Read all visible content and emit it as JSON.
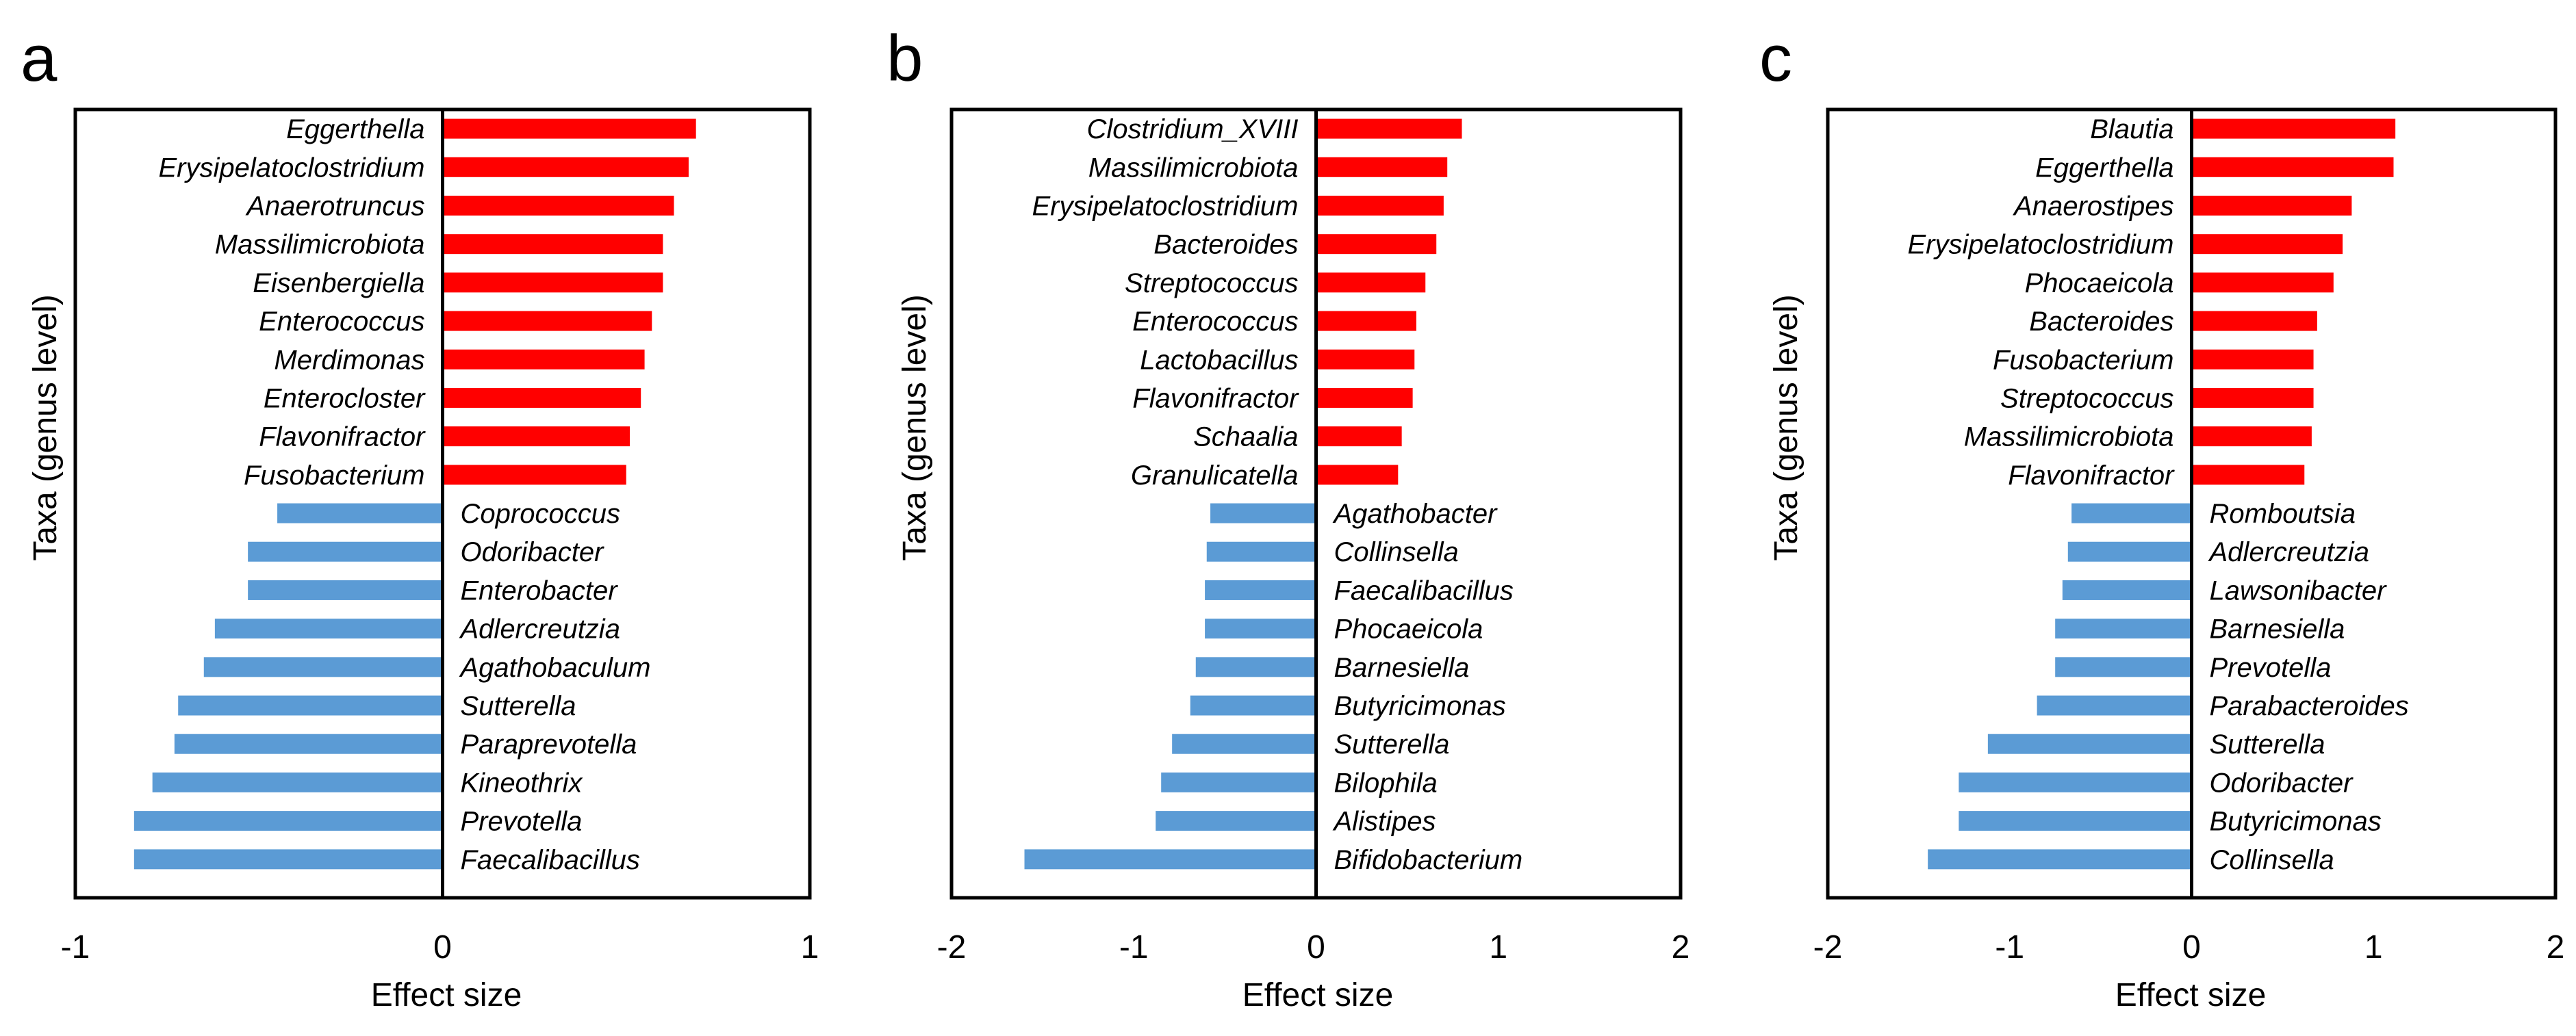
{
  "colors": {
    "positive": "#ff0000",
    "negative": "#5b9bd5",
    "axis": "#000000"
  },
  "chart_data": [
    {
      "panel": "a",
      "type": "bar",
      "orientation": "horizontal",
      "xlabel": "Effect size",
      "ylabel": "Taxa (genus level)",
      "xlim": [
        -1,
        1
      ],
      "xticks": [
        "-1",
        "0",
        "1"
      ],
      "categories": [
        "Eggerthella",
        "Erysipelatoclostridium",
        "Anaerotruncus",
        "Massilimicrobiota",
        "Eisenbergiella",
        "Enterococcus",
        "Merdimonas",
        "Enterocloster",
        "Flavonifractor",
        "Fusobacterium",
        "Coprococcus",
        "Odoribacter",
        "Enterobacter",
        "Adlercreutzia",
        "Agathobaculum",
        "Sutterella",
        "Paraprevotella",
        "Kineothrix",
        "Prevotella",
        "Faecalibacillus"
      ],
      "values": [
        0.69,
        0.67,
        0.63,
        0.6,
        0.6,
        0.57,
        0.55,
        0.54,
        0.51,
        0.5,
        -0.45,
        -0.53,
        -0.53,
        -0.62,
        -0.65,
        -0.72,
        -0.73,
        -0.79,
        -0.84,
        -0.84
      ]
    },
    {
      "panel": "b",
      "type": "bar",
      "orientation": "horizontal",
      "xlabel": "Effect size",
      "ylabel": "Taxa (genus level)",
      "xlim": [
        -2,
        2
      ],
      "xticks": [
        "-2",
        "-1",
        "0",
        "1",
        "2"
      ],
      "categories": [
        "Clostridium_XVIII",
        "Massilimicrobiota",
        "Erysipelatoclostridium",
        "Bacteroides",
        "Streptococcus",
        "Enterococcus",
        "Lactobacillus",
        "Flavonifractor",
        "Schaalia",
        "Granulicatella",
        "Agathobacter",
        "Collinsella",
        "Faecalibacillus",
        "Phocaeicola",
        "Barnesiella",
        "Butyricimonas",
        "Sutterella",
        "Bilophila",
        "Alistipes",
        "Bifidobacterium"
      ],
      "values": [
        0.8,
        0.72,
        0.7,
        0.66,
        0.6,
        0.55,
        0.54,
        0.53,
        0.47,
        0.45,
        -0.58,
        -0.6,
        -0.61,
        -0.61,
        -0.66,
        -0.69,
        -0.79,
        -0.85,
        -0.88,
        -1.6
      ]
    },
    {
      "panel": "c",
      "type": "bar",
      "orientation": "horizontal",
      "xlabel": "Effect size",
      "ylabel": "Taxa (genus level)",
      "xlim": [
        -2,
        2
      ],
      "xticks": [
        "-2",
        "-1",
        "0",
        "1",
        "2"
      ],
      "categories": [
        "Blautia",
        "Eggerthella",
        "Anaerostipes",
        "Erysipelatoclostridium",
        "Phocaeicola",
        "Bacteroides",
        "Fusobacterium",
        "Streptococcus",
        "Massilimicrobiota",
        "Flavonifractor",
        "Romboutsia",
        "Adlercreutzia",
        "Lawsonibacter",
        "Barnesiella",
        "Prevotella",
        "Parabacteroides",
        "Sutterella",
        "Odoribacter",
        "Butyricimonas",
        "Collinsella"
      ],
      "values": [
        1.12,
        1.11,
        0.88,
        0.83,
        0.78,
        0.69,
        0.67,
        0.67,
        0.66,
        0.62,
        -0.66,
        -0.68,
        -0.71,
        -0.75,
        -0.75,
        -0.85,
        -1.12,
        -1.28,
        -1.28,
        -1.45
      ]
    }
  ]
}
